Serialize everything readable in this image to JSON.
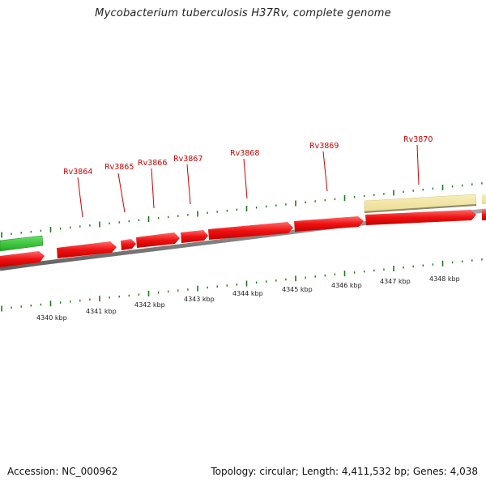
{
  "title": "Mycobacterium tuberculosis H37Rv, complete genome",
  "colors": {
    "cds": "#ee1111",
    "cds_highlight": "#ff6a6a",
    "other_strand_feature": "#33cc33",
    "pale_feature": "#f4e7a4",
    "backbone": "#808080",
    "tick": "#1d7a1d",
    "gene_label": "#cc0000",
    "axis_label": "#222222"
  },
  "genes": [
    {
      "name": "Rv3864"
    },
    {
      "name": "Rv3865"
    },
    {
      "name": "Rv3866"
    },
    {
      "name": "Rv3867"
    },
    {
      "name": "Rv3868"
    },
    {
      "name": "Rv3869"
    },
    {
      "name": "Rv3870"
    }
  ],
  "scale_labels": [
    "4340 kbp",
    "4341 kbp",
    "4342 kbp",
    "4343 kbp",
    "4344 kbp",
    "4345 kbp",
    "4346 kbp",
    "4347 kbp",
    "4348 kbp"
  ],
  "footer": {
    "accession": "Accession: NC_000962",
    "stats": "Topology: circular; Length: 4,411,532 bp; Genes: 4,038"
  }
}
